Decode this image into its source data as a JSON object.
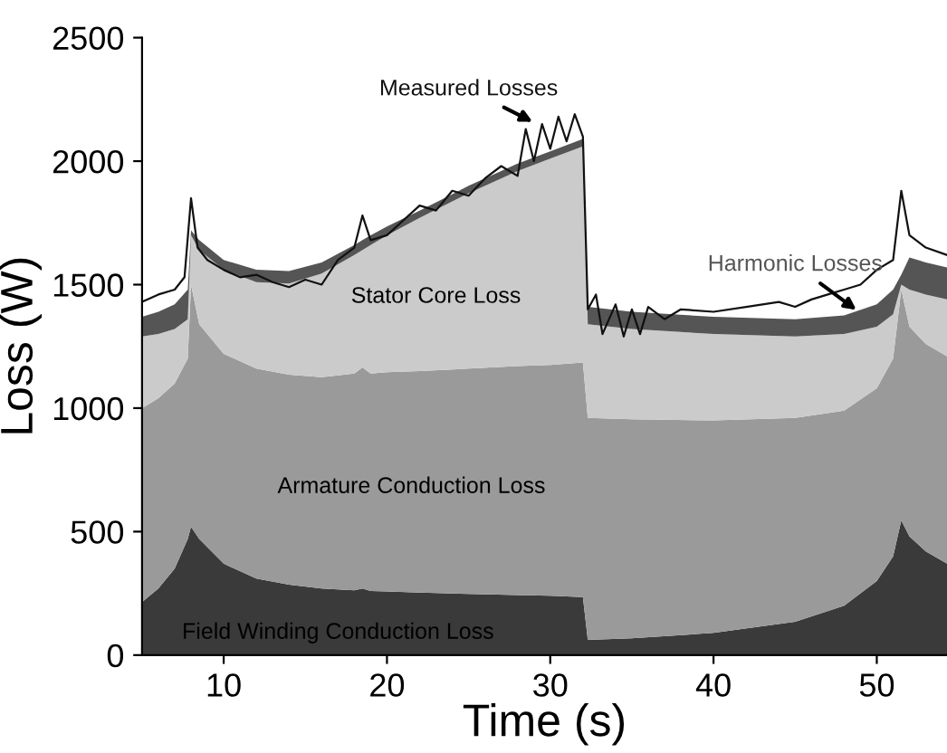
{
  "chart_data": {
    "type": "area",
    "stacked": true,
    "xlabel": "Time (s)",
    "ylabel": "Loss (W)",
    "x": [
      5,
      6,
      7,
      7.8,
      8,
      8.5,
      10,
      12,
      14,
      16,
      18,
      18.5,
      19,
      20,
      22,
      25,
      28,
      30,
      32,
      32.3,
      35,
      40,
      45,
      48,
      50,
      51,
      51.5,
      52,
      53,
      54.3
    ],
    "series": [
      {
        "name": "Field Winding Conduction Loss",
        "color": "#3a3a3a",
        "values": [
          215,
          270,
          350,
          470,
          520,
          470,
          370,
          310,
          285,
          270,
          262,
          270,
          260,
          258,
          253,
          248,
          243,
          240,
          235,
          62,
          68,
          90,
          135,
          200,
          300,
          400,
          545,
          480,
          420,
          370
        ]
      },
      {
        "name": "Armature Conduction Loss",
        "color": "#9a9a9a",
        "values": [
          785,
          770,
          750,
          730,
          980,
          870,
          850,
          850,
          850,
          855,
          878,
          895,
          880,
          887,
          897,
          912,
          927,
          935,
          950,
          898,
          887,
          860,
          825,
          790,
          780,
          800,
          935,
          850,
          840,
          840
        ]
      },
      {
        "name": "Stator Core Loss",
        "color": "#cbcbcb",
        "values": [
          290,
          260,
          220,
          160,
          200,
          300,
          340,
          350,
          370,
          420,
          480,
          475,
          520,
          555,
          620,
          710,
          790,
          835,
          875,
          380,
          365,
          350,
          330,
          310,
          250,
          180,
          20,
          150,
          200,
          230
        ]
      },
      {
        "name": "Harmonic Losses",
        "color": "#555555",
        "values": [
          80,
          90,
          100,
          120,
          20,
          40,
          40,
          50,
          50,
          45,
          40,
          40,
          40,
          35,
          30,
          30,
          30,
          30,
          30,
          70,
          70,
          70,
          70,
          75,
          90,
          100,
          40,
          130,
          130,
          130
        ]
      },
      {
        "name": "Measured Losses",
        "type": "line",
        "color": "#111111",
        "x": [
          5,
          6,
          7,
          7.6,
          8,
          8.4,
          9,
          10,
          11,
          12,
          13,
          14,
          15,
          16,
          17,
          18,
          18.5,
          19,
          20,
          21,
          22,
          23,
          24,
          25,
          26,
          27,
          28,
          28.5,
          29,
          29.5,
          30,
          30.5,
          31,
          31.5,
          32,
          32.3,
          32.8,
          33.2,
          34,
          34.5,
          35,
          35.5,
          36,
          37,
          38,
          40,
          42,
          44,
          45,
          46,
          47,
          48,
          49,
          50,
          51,
          51.5,
          52,
          53,
          54.3
        ],
        "values": [
          1430,
          1460,
          1480,
          1530,
          1850,
          1650,
          1600,
          1560,
          1530,
          1540,
          1510,
          1490,
          1520,
          1500,
          1600,
          1650,
          1780,
          1680,
          1700,
          1760,
          1820,
          1800,
          1880,
          1860,
          1930,
          1980,
          1940,
          2130,
          2000,
          2150,
          2050,
          2180,
          2080,
          2190,
          2100,
          1400,
          1460,
          1300,
          1420,
          1290,
          1400,
          1300,
          1410,
          1360,
          1400,
          1390,
          1410,
          1430,
          1410,
          1440,
          1460,
          1480,
          1500,
          1560,
          1600,
          1880,
          1700,
          1650,
          1620
        ]
      }
    ],
    "xlim": [
      5,
      54.3
    ],
    "ylim": [
      0,
      2500
    ],
    "xticks": [
      10,
      20,
      30,
      40,
      50
    ],
    "yticks": [
      0,
      500,
      1000,
      1500,
      2000,
      2500
    ],
    "grid": false,
    "legend": false
  }
}
